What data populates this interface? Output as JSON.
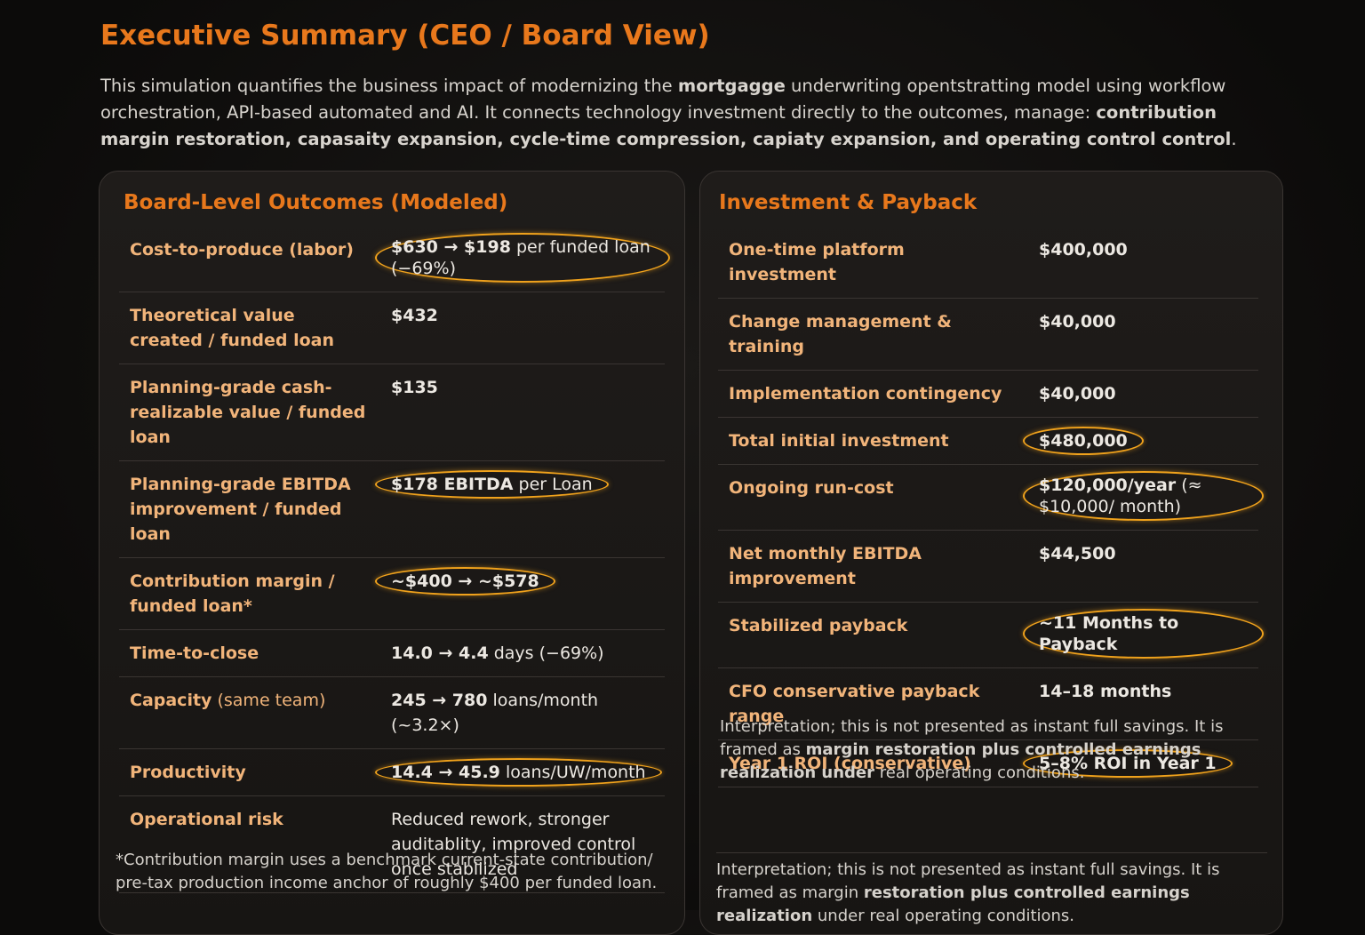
{
  "header": {
    "title": "Executive Summary (CEO / Board View)",
    "intro": [
      {
        "t": "This simulation quantifies the business impact of modernizing the ",
        "b": false
      },
      {
        "t": "mortgagge",
        "b": true
      },
      {
        "t": " underwriting opentstratting model using workflow orchestration, API-based automated and AI. It connects technology investment directly to the outcomes, manage: ",
        "b": false
      },
      {
        "t": "contribution margin restoration, capasaity expansion, cycle-time compression, capiaty expansion, and operating control control",
        "b": true
      },
      {
        "t": ".",
        "b": false
      }
    ]
  },
  "left_panel": {
    "title": "Board-Level Outcomes (Modeled)",
    "rows": [
      {
        "label": "Cost-to-produce (labor)",
        "value": [
          {
            "t": "$630 → $198",
            "b": true
          },
          {
            "t": " per funded loan (−69%)",
            "b": false
          }
        ],
        "highlight": true
      },
      {
        "label": "Theoretical value created / funded loan",
        "value": [
          {
            "t": "$432",
            "b": true
          }
        ],
        "highlight": false
      },
      {
        "label": "Planning-grade cash-realizable value / funded loan",
        "value": [
          {
            "t": "$135",
            "b": true
          }
        ],
        "highlight": false
      },
      {
        "label": "Planning-grade EBITDA improvement / funded loan",
        "value": [
          {
            "t": "$178 EBITDA",
            "b": true
          },
          {
            "t": " per Loan",
            "b": false
          }
        ],
        "highlight": true
      },
      {
        "label": "Contribution margin / funded loan*",
        "value": [
          {
            "t": "~$400 → ~$578",
            "b": true
          }
        ],
        "highlight": true
      },
      {
        "label": "Time-to-close",
        "value": [
          {
            "t": "14.0 → 4.4",
            "b": true
          },
          {
            "t": " days (−69%)",
            "b": false
          }
        ],
        "highlight": false
      },
      {
        "label": [
          {
            "t": "Capacity",
            "b": true
          },
          {
            "t": " (same team)",
            "b": false
          }
        ],
        "value": [
          {
            "t": "245 → 780",
            "b": true
          },
          {
            "t": " loans/month (~3.2×)",
            "b": false
          }
        ],
        "highlight": false
      },
      {
        "label": "Productivity",
        "value": [
          {
            "t": "14.4 → 45.9",
            "b": true
          },
          {
            "t": " loans/UW/month",
            "b": false
          }
        ],
        "highlight": true
      },
      {
        "label": "Operational risk",
        "value": [
          {
            "t": "Reduced rework, stronger auditablity, improved control once stabllized",
            "b": false
          }
        ],
        "highlight": false
      }
    ],
    "footnote": "*Contribution margin uses a benchmark current-state contribution/ pre-tax production income anchor of roughly $400 per funded loan."
  },
  "right_panel": {
    "title": "Investment & Payback",
    "rows": [
      {
        "label": "One-time platform investment",
        "value": [
          {
            "t": "$400,000",
            "b": true
          }
        ],
        "highlight": false
      },
      {
        "label": "Change management & training",
        "value": [
          {
            "t": "$40,000",
            "b": true
          }
        ],
        "highlight": false
      },
      {
        "label": "Implementation contingency",
        "value": [
          {
            "t": "$40,000",
            "b": true
          }
        ],
        "highlight": false
      },
      {
        "label": "Total initial investment",
        "value": [
          {
            "t": "$480,000",
            "b": true
          }
        ],
        "highlight": true
      },
      {
        "label": "Ongoing run-cost",
        "value": [
          {
            "t": "$120,000/year",
            "b": true
          },
          {
            "t": " (≈ $10,000/ month)",
            "b": false
          }
        ],
        "highlight": true
      },
      {
        "label": "Net monthly EBITDA improvement",
        "value": [
          {
            "t": "$44,500",
            "b": true
          }
        ],
        "highlight": false
      },
      {
        "label": "Stabilized payback",
        "value": [
          {
            "t": "~11 Months to Payback",
            "b": true
          }
        ],
        "highlight": true
      },
      {
        "label": "CFO conservative payback range",
        "value": [
          {
            "t": "14–18 months",
            "b": true
          }
        ],
        "highlight": false
      },
      {
        "label": "Year 1 ROI (conservative)",
        "value": [
          {
            "t": "5–8% ROI in Year 1",
            "b": true
          }
        ],
        "highlight": true
      }
    ],
    "notes": [
      [
        {
          "t": "Interpretation; this is not presented as instant full savings. It is framed as ",
          "b": false
        },
        {
          "t": "margin restoration plus controlled earnings realization under",
          "b": true
        },
        {
          "t": " real operating conditions.",
          "b": false
        }
      ],
      [
        {
          "t": "Interpretation; this is not presented as instant full savings. It is framed as margin ",
          "b": false
        },
        {
          "t": "restoration plus controlled earnings realization",
          "b": true
        },
        {
          "t": " under real operating conditions.",
          "b": false
        }
      ]
    ]
  }
}
